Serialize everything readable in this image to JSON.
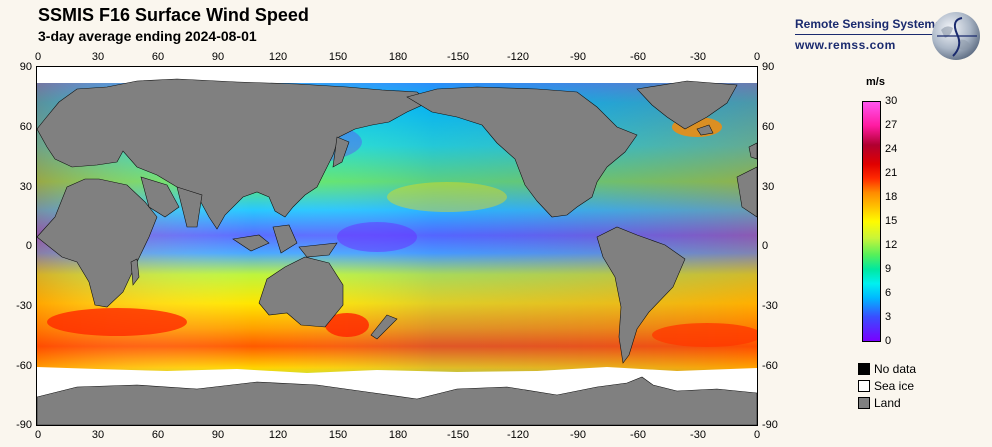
{
  "title": "SSMIS F16 Surface Wind Speed",
  "subtitle": "3-day average ending 2024-08-01",
  "logo": {
    "name": "Remote Sensing Systems",
    "url": "www.remss.com",
    "icon": "globe-icon"
  },
  "longitude_ticks": [
    "0",
    "30",
    "60",
    "90",
    "120",
    "150",
    "180",
    "-150",
    "-120",
    "-90",
    "-60",
    "-30",
    "0"
  ],
  "latitude_ticks": [
    "90",
    "60",
    "30",
    "0",
    "-30",
    "-60",
    "-90"
  ],
  "colorbar": {
    "unit": "m/s",
    "min": 0,
    "max": 30,
    "ticks": [
      "30",
      "27",
      "24",
      "21",
      "18",
      "15",
      "12",
      "9",
      "6",
      "3",
      "0"
    ]
  },
  "legend": [
    {
      "label": "No data",
      "color": "#000000"
    },
    {
      "label": "Sea ice",
      "color": "#ffffff"
    },
    {
      "label": "Land",
      "color": "#808080"
    }
  ]
}
